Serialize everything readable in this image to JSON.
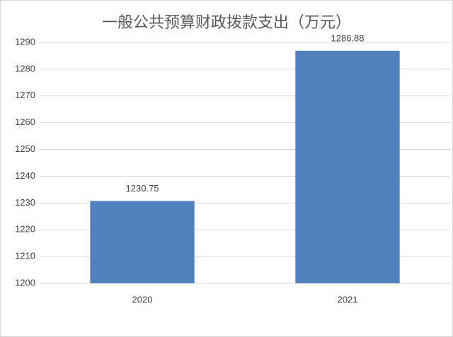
{
  "chart_data": {
    "type": "bar",
    "title": "一般公共预算财政拨款支出（万元）",
    "categories": [
      "2020",
      "2021"
    ],
    "values": [
      1230.75,
      1286.88
    ],
    "color": "#4f81bd",
    "ylim": [
      1200,
      1290
    ],
    "yticks": [
      1200,
      1210,
      1220,
      1230,
      1240,
      1250,
      1260,
      1270,
      1280,
      1290
    ],
    "grid": true
  }
}
